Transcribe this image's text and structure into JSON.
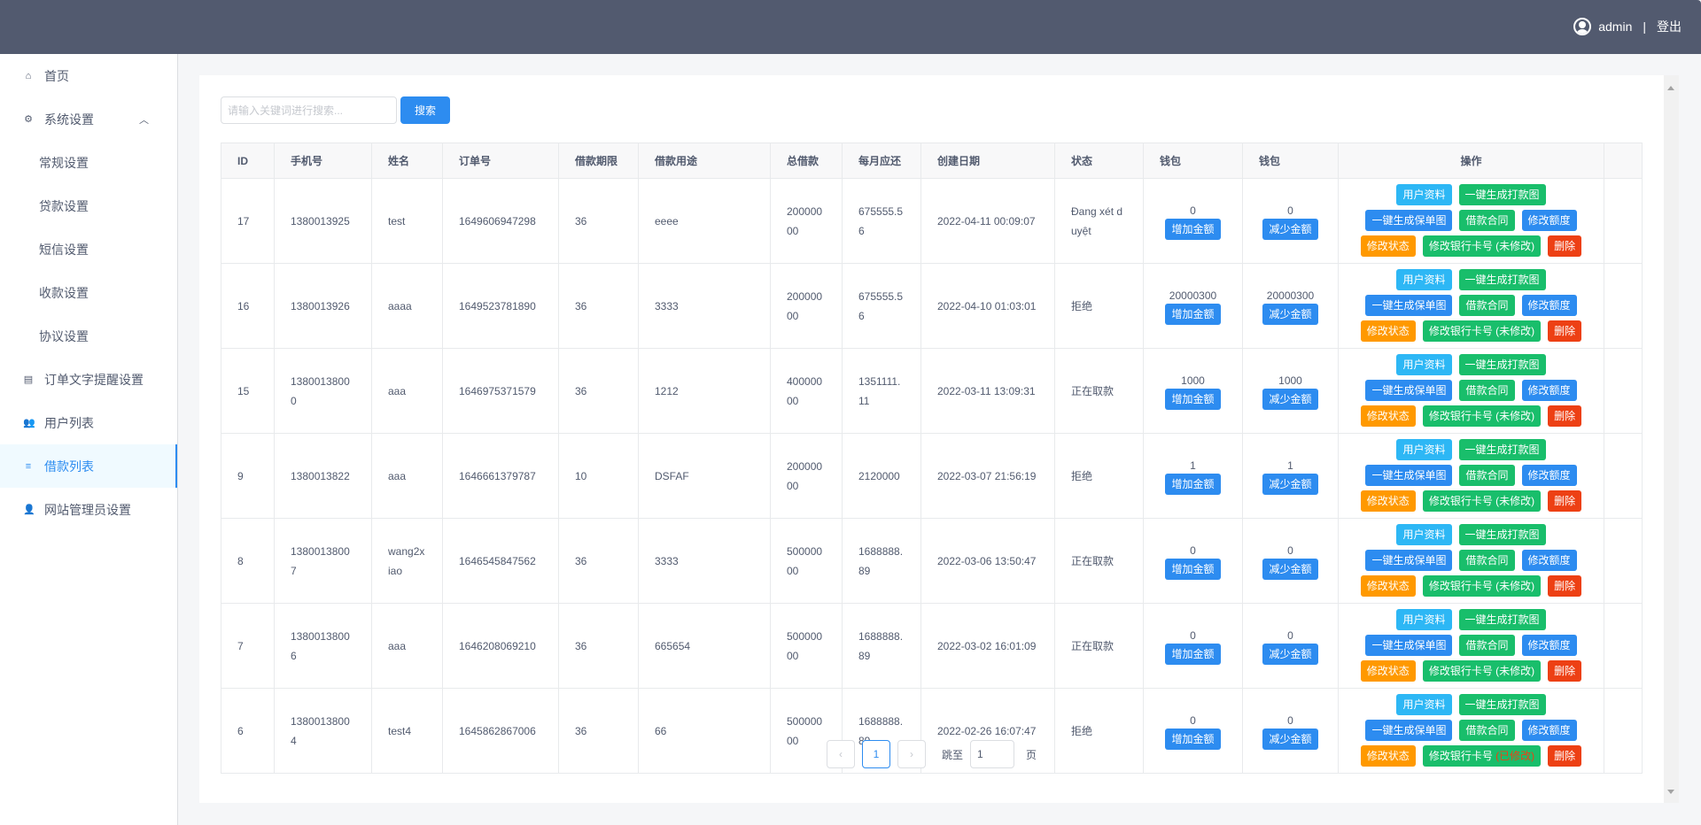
{
  "header": {
    "username": "admin",
    "separator": "|",
    "logout": "登出"
  },
  "sidebar": {
    "items": [
      {
        "label": "首页",
        "icon": "home-icon",
        "glyph": "⌂"
      },
      {
        "label": "系统设置",
        "icon": "gear-icon",
        "glyph": "⚙",
        "expanded": true
      },
      {
        "label": "常规设置",
        "sub": true
      },
      {
        "label": "贷款设置",
        "sub": true
      },
      {
        "label": "短信设置",
        "sub": true
      },
      {
        "label": "收款设置",
        "sub": true
      },
      {
        "label": "协议设置",
        "sub": true
      },
      {
        "label": "订单文字提醒设置",
        "icon": "document-icon",
        "glyph": "▤"
      },
      {
        "label": "用户列表",
        "icon": "users-icon",
        "glyph": "👥"
      },
      {
        "label": "借款列表",
        "icon": "list-icon",
        "glyph": "≡",
        "active": true
      },
      {
        "label": "网站管理员设置",
        "icon": "person-icon",
        "glyph": "👤"
      }
    ]
  },
  "search": {
    "placeholder": "请输入关键词进行搜索...",
    "button": "搜索"
  },
  "table": {
    "columns": [
      "ID",
      "手机号",
      "姓名",
      "订单号",
      "借款期限",
      "借款用途",
      "总借款",
      "每月应还",
      "创建日期",
      "状态",
      "钱包",
      "钱包",
      "操作"
    ],
    "actions": {
      "user_info": "用户资料",
      "gen_payment": "一键生成打款图",
      "gen_policy": "一键生成保单图",
      "contract": "借款合同",
      "edit_limit": "修改额度",
      "edit_status": "修改状态",
      "edit_bank": "修改银行卡号",
      "delete": "删除",
      "add_amount": "增加金额",
      "reduce_amount": "减少金额"
    },
    "rows": [
      {
        "id": "17",
        "phone": "1380013925",
        "name": "test",
        "order": "1649606947298",
        "term": "36",
        "purpose": "eeee",
        "total": "20000000",
        "monthly": "675555.56",
        "date": "2022-04-11 00:09:07",
        "status": "Đang xét duyệt",
        "wallet1": "0",
        "wallet2": "0",
        "bank_state": "(未修改)",
        "bank_modified": false
      },
      {
        "id": "16",
        "phone": "1380013926",
        "name": "aaaa",
        "order": "1649523781890",
        "term": "36",
        "purpose": "3333",
        "total": "20000000",
        "monthly": "675555.56",
        "date": "2022-04-10 01:03:01",
        "status": "拒绝",
        "wallet1": "20000300",
        "wallet2": "20000300",
        "bank_state": "(未修改)",
        "bank_modified": false
      },
      {
        "id": "15",
        "phone": "13800138000",
        "name": "aaa",
        "order": "1646975371579",
        "term": "36",
        "purpose": "1212",
        "total": "40000000",
        "monthly": "1351111.11",
        "date": "2022-03-11 13:09:31",
        "status": "正在取款",
        "wallet1": "1000",
        "wallet2": "1000",
        "bank_state": "(未修改)",
        "bank_modified": false
      },
      {
        "id": "9",
        "phone": "1380013822",
        "name": "aaa",
        "order": "1646661379787",
        "term": "10",
        "purpose": "DSFAF",
        "total": "20000000",
        "monthly": "2120000",
        "date": "2022-03-07 21:56:19",
        "status": "拒绝",
        "wallet1": "1",
        "wallet2": "1",
        "bank_state": "(未修改)",
        "bank_modified": false
      },
      {
        "id": "8",
        "phone": "13800138007",
        "name": "wang2xiao",
        "order": "1646545847562",
        "term": "36",
        "purpose": "3333",
        "total": "50000000",
        "monthly": "1688888.89",
        "date": "2022-03-06 13:50:47",
        "status": "正在取款",
        "wallet1": "0",
        "wallet2": "0",
        "bank_state": "(未修改)",
        "bank_modified": false
      },
      {
        "id": "7",
        "phone": "13800138006",
        "name": "aaa",
        "order": "1646208069210",
        "term": "36",
        "purpose": "665654",
        "total": "50000000",
        "monthly": "1688888.89",
        "date": "2022-03-02 16:01:09",
        "status": "正在取款",
        "wallet1": "0",
        "wallet2": "0",
        "bank_state": "(未修改)",
        "bank_modified": false
      },
      {
        "id": "6",
        "phone": "13800138004",
        "name": "test4",
        "order": "1645862867006",
        "term": "36",
        "purpose": "66",
        "total": "50000000",
        "monthly": "1688888.89",
        "date": "2022-02-26 16:07:47",
        "status": "拒绝",
        "wallet1": "0",
        "wallet2": "0",
        "bank_state": "(已修改)",
        "bank_modified": true
      }
    ]
  },
  "pagination": {
    "prev": "‹",
    "current": "1",
    "next": "›",
    "jump_label": "跳至",
    "jump_value": "1",
    "page_suffix": "页"
  },
  "colors": {
    "header": "#525a6f",
    "primary": "#2d8cf0",
    "info": "#2db7f5",
    "success": "#19be6b",
    "warning": "#ff9900",
    "error": "#ed4014"
  }
}
